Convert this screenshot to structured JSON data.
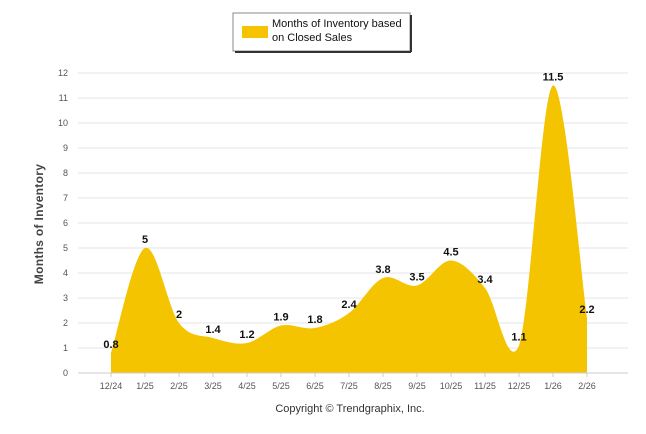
{
  "chart_data": {
    "type": "area",
    "title": "",
    "xlabel": "",
    "ylabel": "Months of Inventory",
    "ylim": [
      0,
      12
    ],
    "yticks": [
      "0",
      "1",
      "2",
      "3",
      "4",
      "5",
      "6",
      "7",
      "8",
      "9",
      "10",
      "11",
      "12"
    ],
    "categories": [
      "12/24",
      "1/25",
      "2/25",
      "3/25",
      "4/25",
      "5/25",
      "6/25",
      "7/25",
      "8/25",
      "9/25",
      "10/25",
      "11/25",
      "12/25",
      "1/26",
      "2/26"
    ],
    "series": [
      {
        "name": "Months of Inventory based on Closed Sales",
        "values": [
          0.8,
          5,
          2,
          1.4,
          1.2,
          1.9,
          1.8,
          2.4,
          3.8,
          3.5,
          4.5,
          3.4,
          1.1,
          11.5,
          2.2
        ],
        "labels": [
          "0.8",
          "5",
          "2",
          "1.4",
          "1.2",
          "1.9",
          "1.8",
          "2.4",
          "3.8",
          "3.5",
          "4.5",
          "3.4",
          "1.1",
          "11.5",
          "2.2"
        ],
        "color": "#f5c400"
      }
    ],
    "legend": {
      "position": "top-center",
      "lines": [
        "Months of Inventory based",
        "on Closed Sales"
      ]
    },
    "grid": true,
    "footer": "Copyright © Trendgraphix, Inc."
  }
}
